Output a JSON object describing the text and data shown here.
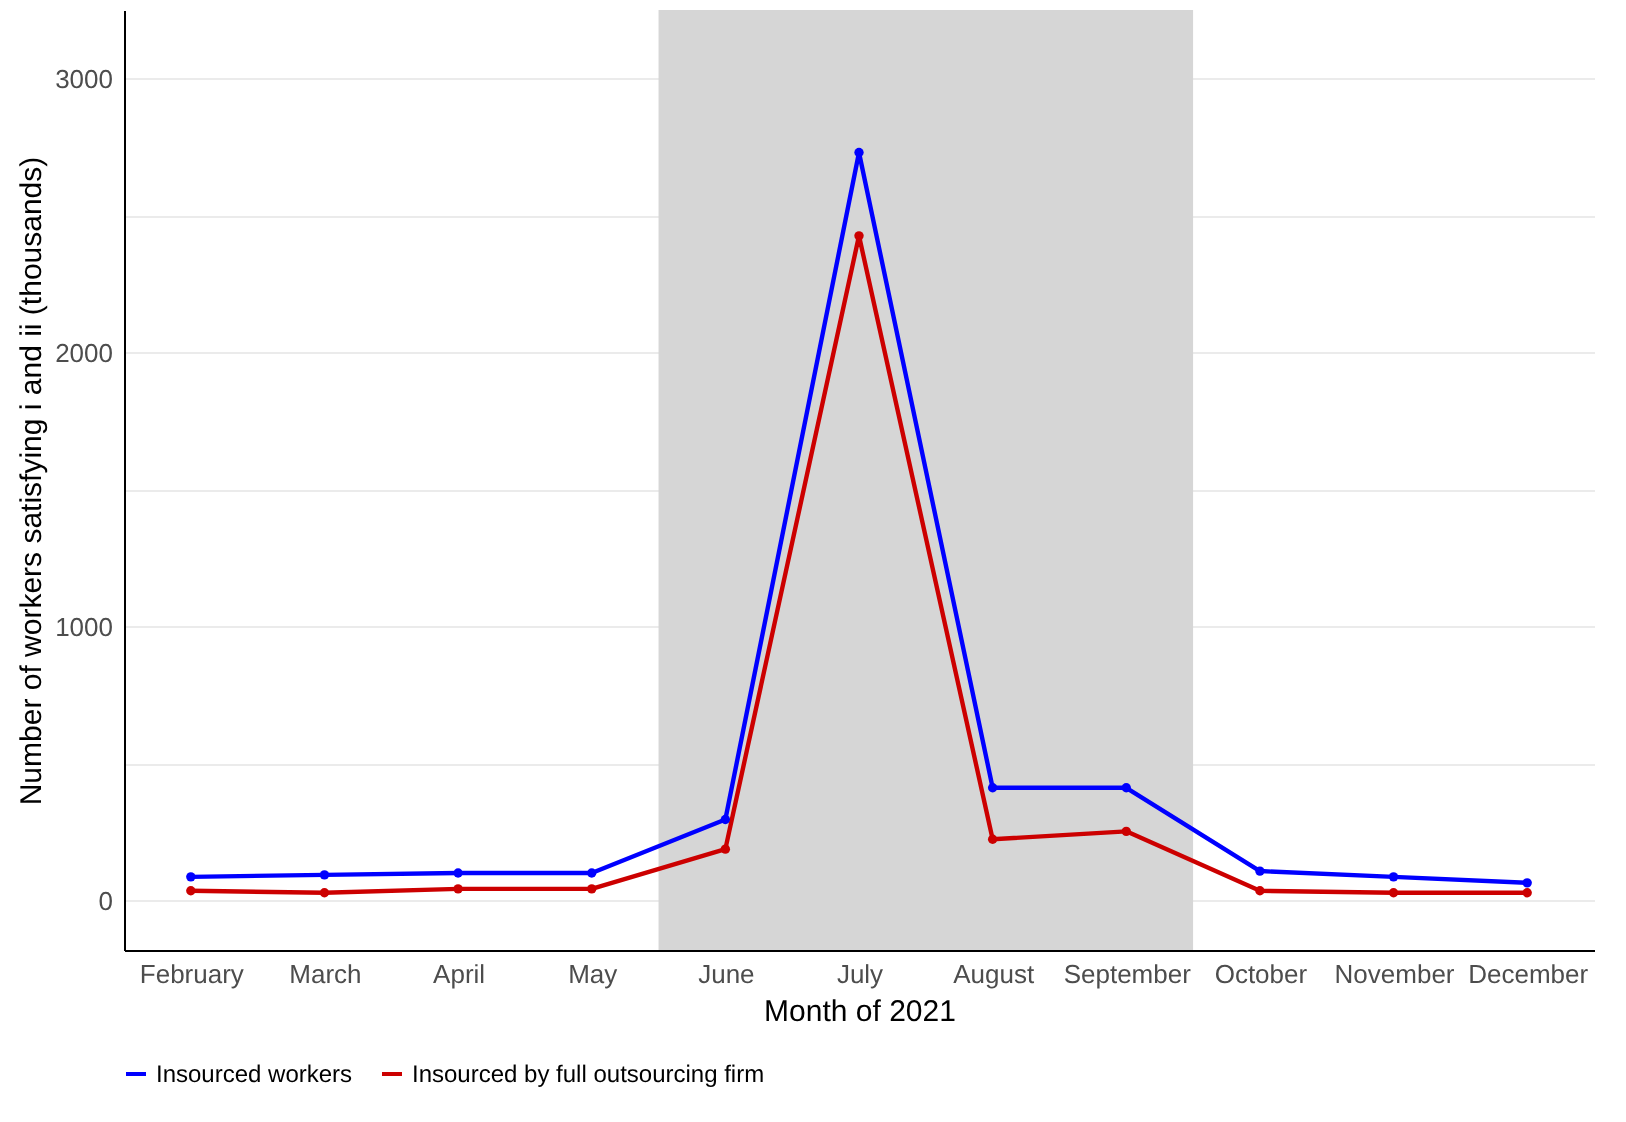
{
  "chart_data": {
    "type": "line",
    "xlabel": "Month of 2021",
    "ylabel": "Number of workers satisfying i and ii (thousands)",
    "categories": [
      "February",
      "March",
      "April",
      "May",
      "June",
      "July",
      "August",
      "September",
      "October",
      "November",
      "December"
    ],
    "series": [
      {
        "name": "Insourced workers",
        "color": "#0000ff",
        "values": [
          87,
          94,
          101,
          101,
          296,
          2730,
          412,
          412,
          108,
          87,
          65
        ]
      },
      {
        "name": "Insourced by full outsourcing firm",
        "color": "#cc0000",
        "values": [
          36,
          29,
          43,
          43,
          188,
          2426,
          224,
          253,
          36,
          29,
          29
        ]
      }
    ],
    "ylim": [
      -180,
      3250
    ],
    "yticks": [
      0,
      {
        "value": 500,
        "label": null
      },
      1000,
      {
        "value": 1500,
        "label": null
      },
      2000,
      {
        "value": 2500,
        "label": null
      },
      3000
    ],
    "bands": [
      {
        "axis": "x",
        "from": "June",
        "to": "September",
        "color": "#d6d6d6"
      }
    ],
    "grid": "y",
    "legend": "bottom",
    "marker": "circle",
    "line_style": "solid"
  }
}
